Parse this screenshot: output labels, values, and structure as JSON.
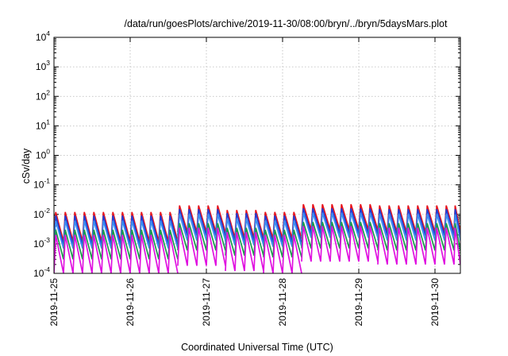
{
  "chart_data": {
    "type": "line",
    "title": "/data/run/goesPlots/archive/2019-11-30/08:00/bryn/../bryn/5daysMars.plot",
    "xlabel": "Coordinated Universal Time (UTC)",
    "ylabel": "cSv/day",
    "yscale": "log",
    "ylim": [
      0.0001,
      10000
    ],
    "yticks": [
      {
        "base": "10",
        "exp": "-4",
        "value": 0.0001
      },
      {
        "base": "10",
        "exp": "-3",
        "value": 0.001
      },
      {
        "base": "10",
        "exp": "-2",
        "value": 0.01
      },
      {
        "base": "10",
        "exp": "-1",
        "value": 0.1
      },
      {
        "base": "10",
        "exp": "0",
        "value": 1
      },
      {
        "base": "10",
        "exp": "1",
        "value": 10
      },
      {
        "base": "10",
        "exp": "2",
        "value": 100
      },
      {
        "base": "10",
        "exp": "3",
        "value": 1000
      },
      {
        "base": "10",
        "exp": "4",
        "value": 10000
      }
    ],
    "xlim": [
      "2019-11-25T00:00",
      "2019-11-30T08:00"
    ],
    "xticks": [
      "2019-11-25",
      "2019-11-26",
      "2019-11-27",
      "2019-11-28",
      "2019-11-29",
      "2019-11-30"
    ],
    "grid": true,
    "legend": "none",
    "sawtooth_period_hours": 3,
    "series": [
      {
        "color": "#e8141c",
        "segments": [
          {
            "x": [
              "2019-11-25T00:00",
              "2019-11-26T15:00"
            ],
            "peak": 0.012,
            "trough": 0.0012
          },
          {
            "x": [
              "2019-11-26T15:00",
              "2019-11-27T06:00"
            ],
            "peak": 0.02,
            "trough": 0.0025
          },
          {
            "x": [
              "2019-11-27T06:00",
              "2019-11-27T18:00"
            ],
            "peak": 0.014,
            "trough": 0.0016
          },
          {
            "x": [
              "2019-11-27T18:00",
              "2019-11-28T06:00"
            ],
            "peak": 0.012,
            "trough": 0.0015
          },
          {
            "x": [
              "2019-11-28T06:00",
              "2019-11-29T06:00"
            ],
            "peak": 0.022,
            "trough": 0.003
          },
          {
            "x": [
              "2019-11-29T06:00",
              "2019-11-30T08:00"
            ],
            "peak": 0.02,
            "trough": 0.0025
          }
        ]
      },
      {
        "color": "#1f3fd6",
        "segments": [
          {
            "x": [
              "2019-11-25T00:00",
              "2019-11-26T15:00"
            ],
            "peak": 0.009,
            "trough": 0.0009
          },
          {
            "x": [
              "2019-11-26T15:00",
              "2019-11-27T06:00"
            ],
            "peak": 0.015,
            "trough": 0.0019
          },
          {
            "x": [
              "2019-11-27T06:00",
              "2019-11-27T18:00"
            ],
            "peak": 0.011,
            "trough": 0.0012
          },
          {
            "x": [
              "2019-11-27T18:00",
              "2019-11-28T06:00"
            ],
            "peak": 0.009,
            "trough": 0.0011
          },
          {
            "x": [
              "2019-11-28T06:00",
              "2019-11-29T06:00"
            ],
            "peak": 0.016,
            "trough": 0.0022
          },
          {
            "x": [
              "2019-11-29T06:00",
              "2019-11-30T08:00"
            ],
            "peak": 0.015,
            "trough": 0.0019
          }
        ]
      },
      {
        "color": "#3a8ef0",
        "segments": [
          {
            "x": [
              "2019-11-25T00:00",
              "2019-11-26T15:00"
            ],
            "peak": 0.006,
            "trough": 0.0007
          },
          {
            "x": [
              "2019-11-26T15:00",
              "2019-11-27T06:00"
            ],
            "peak": 0.01,
            "trough": 0.0013
          },
          {
            "x": [
              "2019-11-27T06:00",
              "2019-11-27T18:00"
            ],
            "peak": 0.007,
            "trough": 0.0009
          },
          {
            "x": [
              "2019-11-27T18:00",
              "2019-11-28T06:00"
            ],
            "peak": 0.006,
            "trough": 0.0008
          },
          {
            "x": [
              "2019-11-28T06:00",
              "2019-11-29T06:00"
            ],
            "peak": 0.011,
            "trough": 0.0016
          },
          {
            "x": [
              "2019-11-29T06:00",
              "2019-11-30T08:00"
            ],
            "peak": 0.01,
            "trough": 0.0013
          }
        ]
      },
      {
        "color": "#1a9a4a",
        "segments": [
          {
            "x": [
              "2019-11-25T00:00",
              "2019-11-26T15:00"
            ],
            "peak": 0.003,
            "trough": 0.0003
          },
          {
            "x": [
              "2019-11-26T15:00",
              "2019-11-27T06:00"
            ],
            "peak": 0.005,
            "trough": 0.0006
          },
          {
            "x": [
              "2019-11-27T06:00",
              "2019-11-27T18:00"
            ],
            "peak": 0.0035,
            "trough": 0.0004
          },
          {
            "x": [
              "2019-11-27T18:00",
              "2019-11-28T06:00"
            ],
            "peak": 0.003,
            "trough": 0.00035
          },
          {
            "x": [
              "2019-11-28T06:00",
              "2019-11-29T06:00"
            ],
            "peak": 0.0055,
            "trough": 0.0007
          },
          {
            "x": [
              "2019-11-29T06:00",
              "2019-11-30T08:00"
            ],
            "peak": 0.005,
            "trough": 0.0006
          }
        ]
      },
      {
        "color": "#e010e0",
        "segments": [
          {
            "x": [
              "2019-11-25T00:00",
              "2019-11-26T15:00"
            ],
            "peak": 0.002,
            "trough": 0.0001
          },
          {
            "x": [
              "2019-11-26T15:00",
              "2019-11-27T06:00"
            ],
            "peak": 0.0035,
            "trough": 0.00018
          },
          {
            "x": [
              "2019-11-27T06:00",
              "2019-11-27T18:00"
            ],
            "peak": 0.0025,
            "trough": 0.00012
          },
          {
            "x": [
              "2019-11-27T18:00",
              "2019-11-28T06:00"
            ],
            "peak": 0.002,
            "trough": 0.0001
          },
          {
            "x": [
              "2019-11-28T06:00",
              "2019-11-29T06:00"
            ],
            "peak": 0.004,
            "trough": 0.00025
          },
          {
            "x": [
              "2019-11-29T06:00",
              "2019-11-30T08:00"
            ],
            "peak": 0.0035,
            "trough": 0.0002
          }
        ]
      }
    ]
  }
}
